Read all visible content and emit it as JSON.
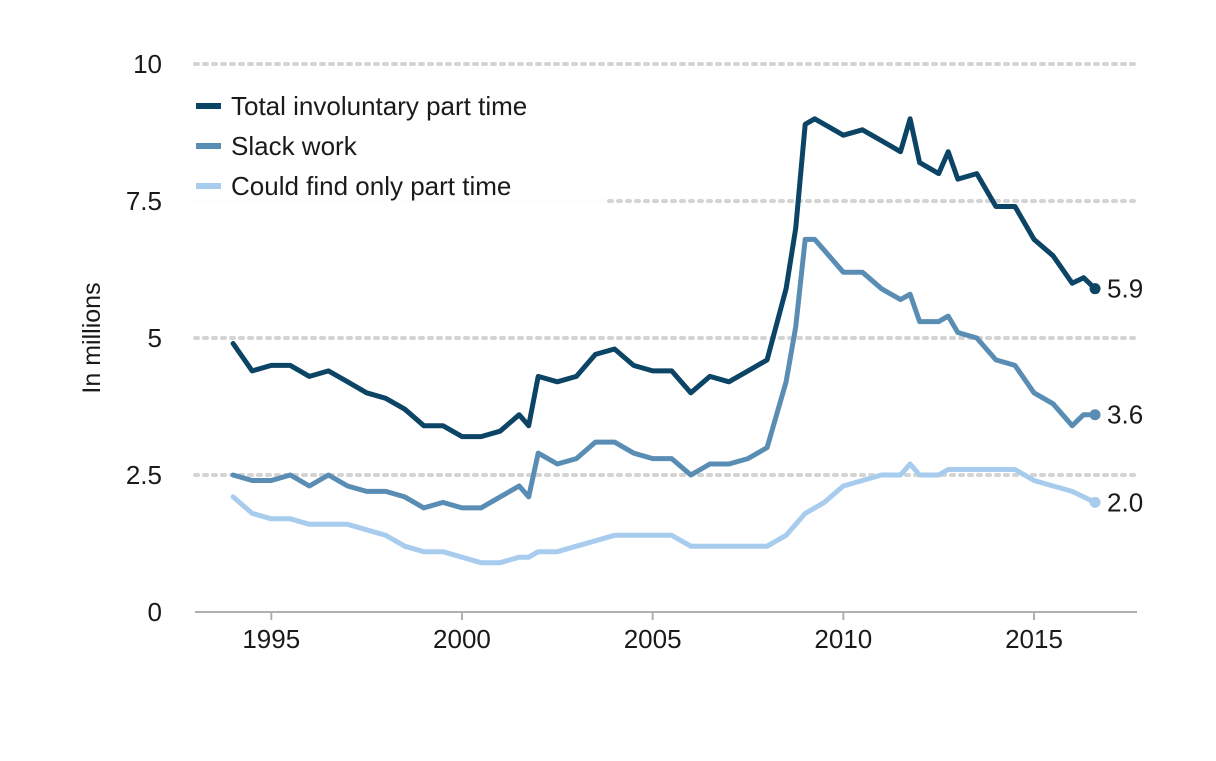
{
  "chart_data": {
    "type": "line",
    "title": "",
    "xlabel": "",
    "ylabel": "In millions",
    "xlim": [
      1993,
      2017.7
    ],
    "ylim": [
      0,
      10
    ],
    "x_ticks": [
      "1995",
      "2000",
      "2005",
      "2010",
      "2015"
    ],
    "x_tick_values": [
      1995,
      2000,
      2005,
      2010,
      2015
    ],
    "y_ticks": [
      "0",
      "2.5",
      "5",
      "7.5",
      "10"
    ],
    "y_tick_values": [
      0,
      2.5,
      5,
      7.5,
      10
    ],
    "grid": "horizontal dotted",
    "legend_position": "top-left",
    "series": [
      {
        "name": "Total involuntary part time",
        "color": "#0c4466",
        "end_label": "5.9",
        "x": [
          1994.0,
          1994.5,
          1995.0,
          1995.5,
          1996.0,
          1996.5,
          1997.0,
          1997.5,
          1998.0,
          1998.5,
          1999.0,
          1999.5,
          2000.0,
          2000.5,
          2001.0,
          2001.5,
          2001.75,
          2002.0,
          2002.5,
          2003.0,
          2003.5,
          2004.0,
          2004.5,
          2005.0,
          2005.5,
          2006.0,
          2006.5,
          2007.0,
          2007.5,
          2008.0,
          2008.5,
          2008.75,
          2009.0,
          2009.25,
          2009.5,
          2010.0,
          2010.5,
          2011.0,
          2011.5,
          2011.75,
          2012.0,
          2012.5,
          2012.75,
          2013.0,
          2013.5,
          2014.0,
          2014.5,
          2015.0,
          2015.5,
          2016.0,
          2016.3,
          2016.6
        ],
        "values": [
          4.9,
          4.4,
          4.5,
          4.5,
          4.3,
          4.4,
          4.2,
          4.0,
          3.9,
          3.7,
          3.4,
          3.4,
          3.2,
          3.2,
          3.3,
          3.6,
          3.4,
          4.3,
          4.2,
          4.3,
          4.7,
          4.8,
          4.5,
          4.4,
          4.4,
          4.0,
          4.3,
          4.2,
          4.4,
          4.6,
          5.9,
          7.0,
          8.9,
          9.0,
          8.9,
          8.7,
          8.8,
          8.6,
          8.4,
          9.0,
          8.2,
          8.0,
          8.4,
          7.9,
          8.0,
          7.4,
          7.4,
          6.8,
          6.5,
          6.0,
          6.1,
          5.9
        ]
      },
      {
        "name": "Slack work",
        "color": "#5a8db4",
        "end_label": "3.6",
        "x": [
          1994.0,
          1994.5,
          1995.0,
          1995.5,
          1996.0,
          1996.5,
          1997.0,
          1997.5,
          1998.0,
          1998.5,
          1999.0,
          1999.5,
          2000.0,
          2000.5,
          2001.0,
          2001.5,
          2001.75,
          2002.0,
          2002.5,
          2003.0,
          2003.5,
          2004.0,
          2004.5,
          2005.0,
          2005.5,
          2006.0,
          2006.5,
          2007.0,
          2007.5,
          2008.0,
          2008.5,
          2008.75,
          2009.0,
          2009.25,
          2009.5,
          2010.0,
          2010.5,
          2011.0,
          2011.5,
          2011.75,
          2012.0,
          2012.5,
          2012.75,
          2013.0,
          2013.5,
          2014.0,
          2014.5,
          2015.0,
          2015.5,
          2016.0,
          2016.3,
          2016.6
        ],
        "values": [
          2.5,
          2.4,
          2.4,
          2.5,
          2.3,
          2.5,
          2.3,
          2.2,
          2.2,
          2.1,
          1.9,
          2.0,
          1.9,
          1.9,
          2.1,
          2.3,
          2.1,
          2.9,
          2.7,
          2.8,
          3.1,
          3.1,
          2.9,
          2.8,
          2.8,
          2.5,
          2.7,
          2.7,
          2.8,
          3.0,
          4.2,
          5.2,
          6.8,
          6.8,
          6.6,
          6.2,
          6.2,
          5.9,
          5.7,
          5.8,
          5.3,
          5.3,
          5.4,
          5.1,
          5.0,
          4.6,
          4.5,
          4.0,
          3.8,
          3.4,
          3.6,
          3.6
        ]
      },
      {
        "name": "Could find only part time",
        "color": "#a8cced",
        "end_label": "2.0",
        "x": [
          1994.0,
          1994.5,
          1995.0,
          1995.5,
          1996.0,
          1996.5,
          1997.0,
          1997.5,
          1998.0,
          1998.5,
          1999.0,
          1999.5,
          2000.0,
          2000.5,
          2001.0,
          2001.5,
          2001.75,
          2002.0,
          2002.5,
          2003.0,
          2003.5,
          2004.0,
          2004.5,
          2005.0,
          2005.5,
          2006.0,
          2006.5,
          2007.0,
          2007.5,
          2008.0,
          2008.5,
          2008.75,
          2009.0,
          2009.25,
          2009.5,
          2010.0,
          2010.5,
          2011.0,
          2011.5,
          2011.75,
          2012.0,
          2012.5,
          2012.75,
          2013.0,
          2013.5,
          2014.0,
          2014.5,
          2015.0,
          2015.5,
          2016.0,
          2016.3,
          2016.6
        ],
        "values": [
          2.1,
          1.8,
          1.7,
          1.7,
          1.6,
          1.6,
          1.6,
          1.5,
          1.4,
          1.2,
          1.1,
          1.1,
          1.0,
          0.9,
          0.9,
          1.0,
          1.0,
          1.1,
          1.1,
          1.2,
          1.3,
          1.4,
          1.4,
          1.4,
          1.4,
          1.2,
          1.2,
          1.2,
          1.2,
          1.2,
          1.4,
          1.6,
          1.8,
          1.9,
          2.0,
          2.3,
          2.4,
          2.5,
          2.5,
          2.7,
          2.5,
          2.5,
          2.6,
          2.6,
          2.6,
          2.6,
          2.6,
          2.4,
          2.3,
          2.2,
          2.1,
          2.0
        ]
      }
    ]
  }
}
